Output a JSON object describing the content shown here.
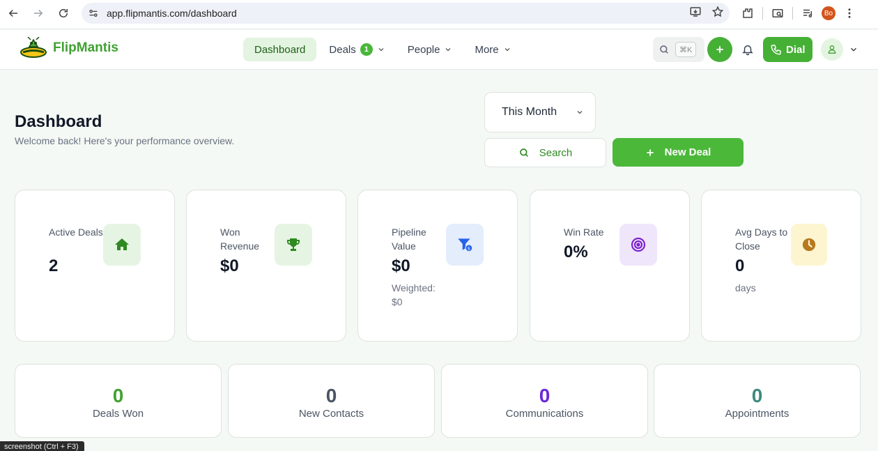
{
  "browser": {
    "url": "app.flipmantis.com/dashboard",
    "profile_initials": "Bo"
  },
  "header": {
    "logo_text": "FlipMantis",
    "nav": [
      {
        "label": "Dashboard"
      },
      {
        "label": "Deals",
        "badge": "1"
      },
      {
        "label": "People"
      },
      {
        "label": "More"
      }
    ],
    "search_shortcut": "⌘K",
    "dial_label": "Dial"
  },
  "page": {
    "title": "Dashboard",
    "subtitle": "Welcome back! Here's your performance overview.",
    "period": "This Month",
    "search_label": "Search",
    "new_deal_label": "New Deal"
  },
  "stats": [
    {
      "label": "Active Deals",
      "value": "2",
      "icon": "home-icon",
      "icon_bg": "#e6f5e3",
      "icon_color": "#2f8a22"
    },
    {
      "label": "Won Revenue",
      "value": "$0",
      "icon": "trophy-icon",
      "icon_bg": "#e6f5e3",
      "icon_color": "#2f8a22"
    },
    {
      "label": "Pipeline Value",
      "value": "$0",
      "sub": "Weighted: $0",
      "icon": "funnel-dollar-icon",
      "icon_bg": "#e3edfb",
      "icon_color": "#2563eb"
    },
    {
      "label": "Win Rate",
      "value": "0%",
      "icon": "target-icon",
      "icon_bg": "#efe6fb",
      "icon_color": "#7e22ce"
    },
    {
      "label": "Avg Days to Close",
      "value": "0",
      "sub": "days",
      "icon": "clock-icon",
      "icon_bg": "#fcf5cf",
      "icon_color": "#b7791f"
    }
  ],
  "summary": [
    {
      "value": "0",
      "label": "Deals Won",
      "color": "#44a232"
    },
    {
      "value": "0",
      "label": "New Contacts",
      "color": "#4b5563"
    },
    {
      "value": "0",
      "label": "Communications",
      "color": "#6d28d9"
    },
    {
      "value": "0",
      "label": "Appointments",
      "color": "#3d8a7e"
    }
  ],
  "tooltip": "screenshot (Ctrl + F3)"
}
